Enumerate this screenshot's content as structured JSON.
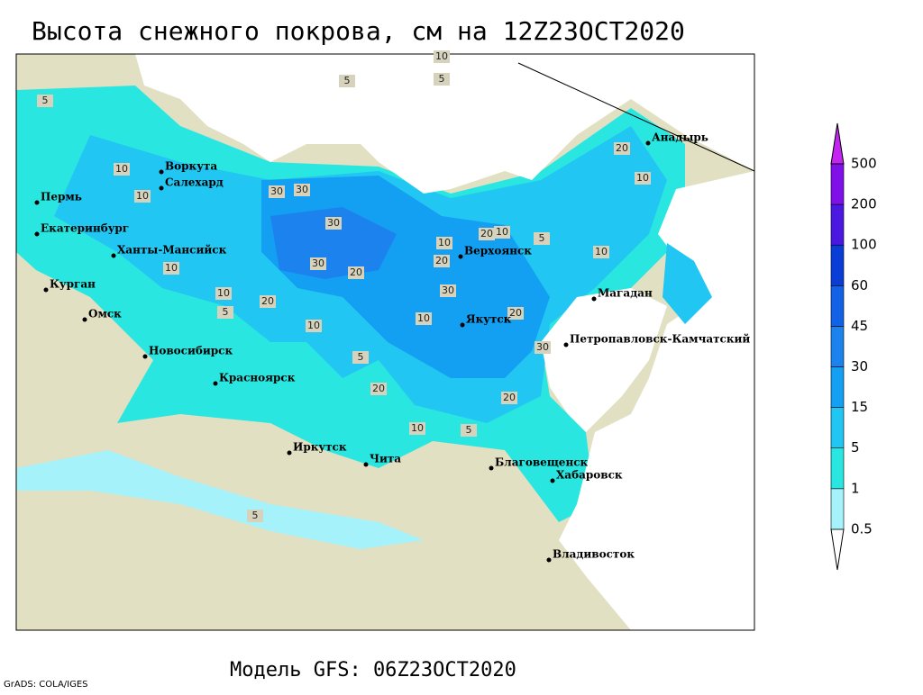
{
  "title": "Высота снежного покрова, см на 12Z23OCT2020",
  "footer": "Модель GFS: 06Z23OCT2020",
  "credit": "GrADS: COLA/IGES",
  "cities": [
    "Воркута",
    "Салехард",
    "Пермь",
    "Екатеринбург",
    "Ханты-Мансийск",
    "Курган",
    "Омск",
    "Новосибирск",
    "Красноярск",
    "Иркутск",
    "Чита",
    "Верхоянск",
    "Якутск",
    "Магадан",
    "Петропавловск-Камчатский",
    "Анадырь",
    "Благовещенск",
    "Хабаровск",
    "Владивосток"
  ],
  "contour_labels": [
    10,
    5,
    5,
    5,
    10,
    10,
    30,
    30,
    30,
    10,
    30,
    20,
    20,
    10,
    5,
    10,
    10,
    20,
    30,
    10,
    20,
    10,
    5,
    10,
    20,
    30,
    20,
    10,
    5,
    20,
    5,
    5,
    20,
    10
  ],
  "legend": {
    "ticks": [
      0.5,
      1,
      5,
      15,
      30,
      45,
      60,
      100,
      200,
      500
    ],
    "colors": [
      "#ffffff",
      "#a6f2fa",
      "#2ae6e0",
      "#22c6f2",
      "#14a0f2",
      "#1c82ee",
      "#1262e6",
      "#0a3cd6",
      "#4a18e0",
      "#8010e8",
      "#c424f2"
    ]
  }
}
